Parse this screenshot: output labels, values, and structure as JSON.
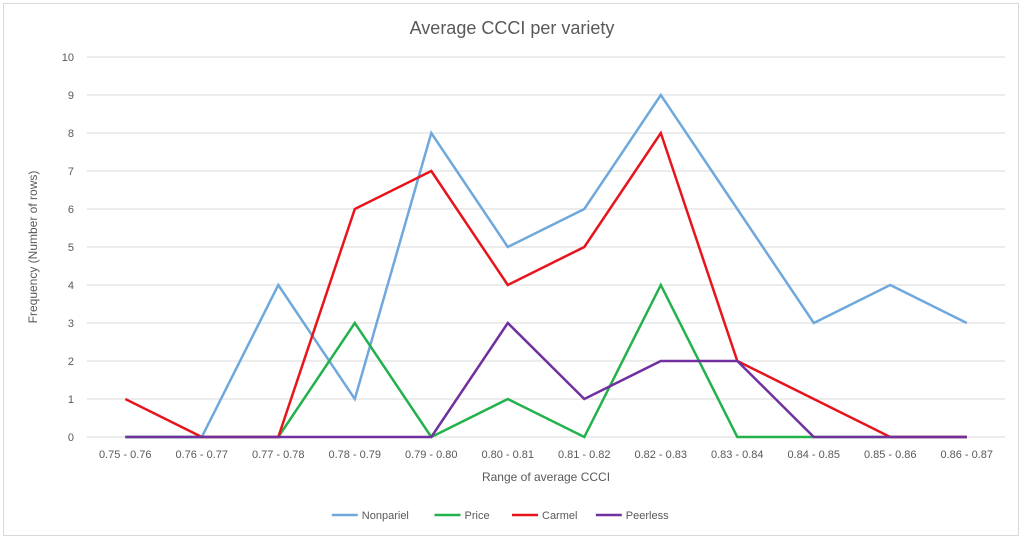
{
  "chart_data": {
    "type": "line",
    "title": "Average CCCI per variety",
    "xlabel": "Range of average CCCI",
    "ylabel": "Frequency (Number of rows)",
    "ylim": [
      0,
      10
    ],
    "yticks": [
      "0",
      "1",
      "2",
      "3",
      "4",
      "5",
      "6",
      "7",
      "8",
      "9",
      "10"
    ],
    "grid": true,
    "legend_position": "bottom",
    "categories": [
      "0.75 - 0.76",
      "0.76 - 0.77",
      "0.77 - 0.78",
      "0.78 - 0.79",
      "0.79 - 0.80",
      "0.80 - 0.81",
      "0.81 - 0.82",
      "0.82 - 0.83",
      "0.83 - 0.84",
      "0.84 - 0.85",
      "0.85 - 0.86",
      "0.86 - 0.87"
    ],
    "series": [
      {
        "name": "Nonpariel",
        "color": "#6fa8dc",
        "values": [
          0,
          0,
          4,
          1,
          8,
          5,
          6,
          9,
          6,
          3,
          4,
          3
        ]
      },
      {
        "name": "Price",
        "color": "#22b14c",
        "values": [
          0,
          0,
          0,
          3,
          0,
          1,
          0,
          4,
          0,
          0,
          0,
          0
        ]
      },
      {
        "name": "Carmel",
        "color": "#e8141b",
        "values": [
          1,
          0,
          0,
          6,
          7,
          4,
          5,
          8,
          2,
          1,
          0,
          0
        ]
      },
      {
        "name": "Peerless",
        "color": "#7030a0",
        "values": [
          0,
          0,
          0,
          0,
          0,
          3,
          1,
          2,
          2,
          0,
          0,
          0
        ]
      }
    ]
  }
}
